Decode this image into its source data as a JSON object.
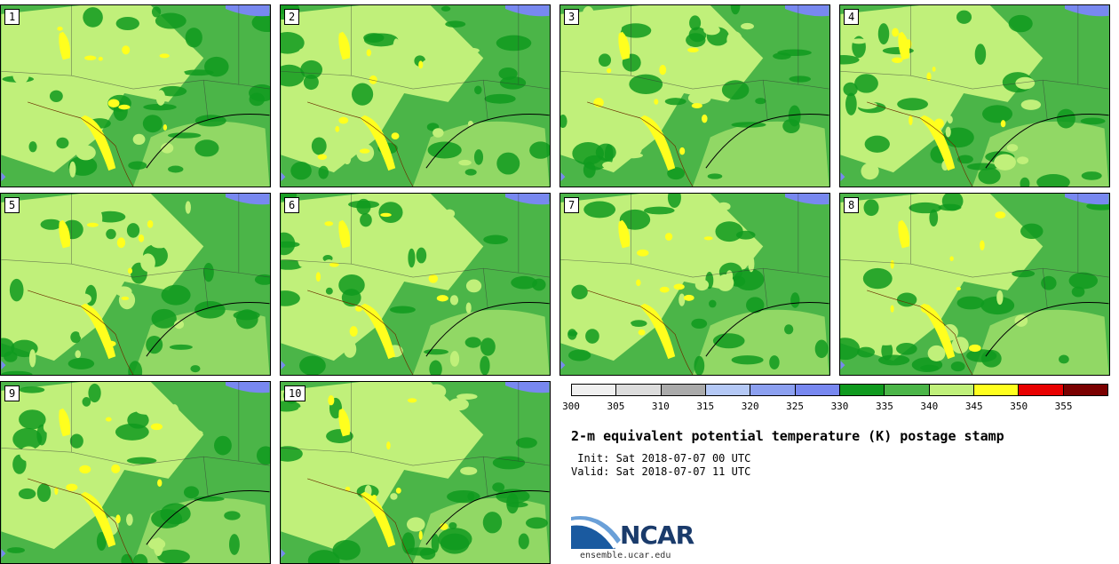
{
  "title": "2-m equivalent potential temperature (K) postage stamp",
  "init": " Init: Sat 2018-07-07 00 UTC",
  "valid": "Valid: Sat 2018-07-07 11 UTC",
  "members": [
    "1",
    "2",
    "3",
    "4",
    "5",
    "6",
    "7",
    "8",
    "9",
    "10"
  ],
  "colorbar": {
    "ticks": [
      "300",
      "305",
      "310",
      "315",
      "320",
      "325",
      "330",
      "335",
      "340",
      "345",
      "350",
      "355"
    ],
    "colors": [
      "#f0f0f0",
      "#dcdcdc",
      "#aaaaaa",
      "#b4c8f5",
      "#8ca0f0",
      "#7888f0",
      "#0f9a1e",
      "#4bb548",
      "#c0f07a",
      "#ffff1e",
      "#e80000",
      "#7a0000"
    ]
  },
  "logo_text": "NCAR",
  "url": "ensemble.ucar.edu",
  "map_colors": {
    "land_base": "#4bb548",
    "dark": "#0f9a1e",
    "light": "#c0f07a",
    "yellow": "#ffff1e",
    "water": "#7888f0",
    "red": "#e80000"
  }
}
